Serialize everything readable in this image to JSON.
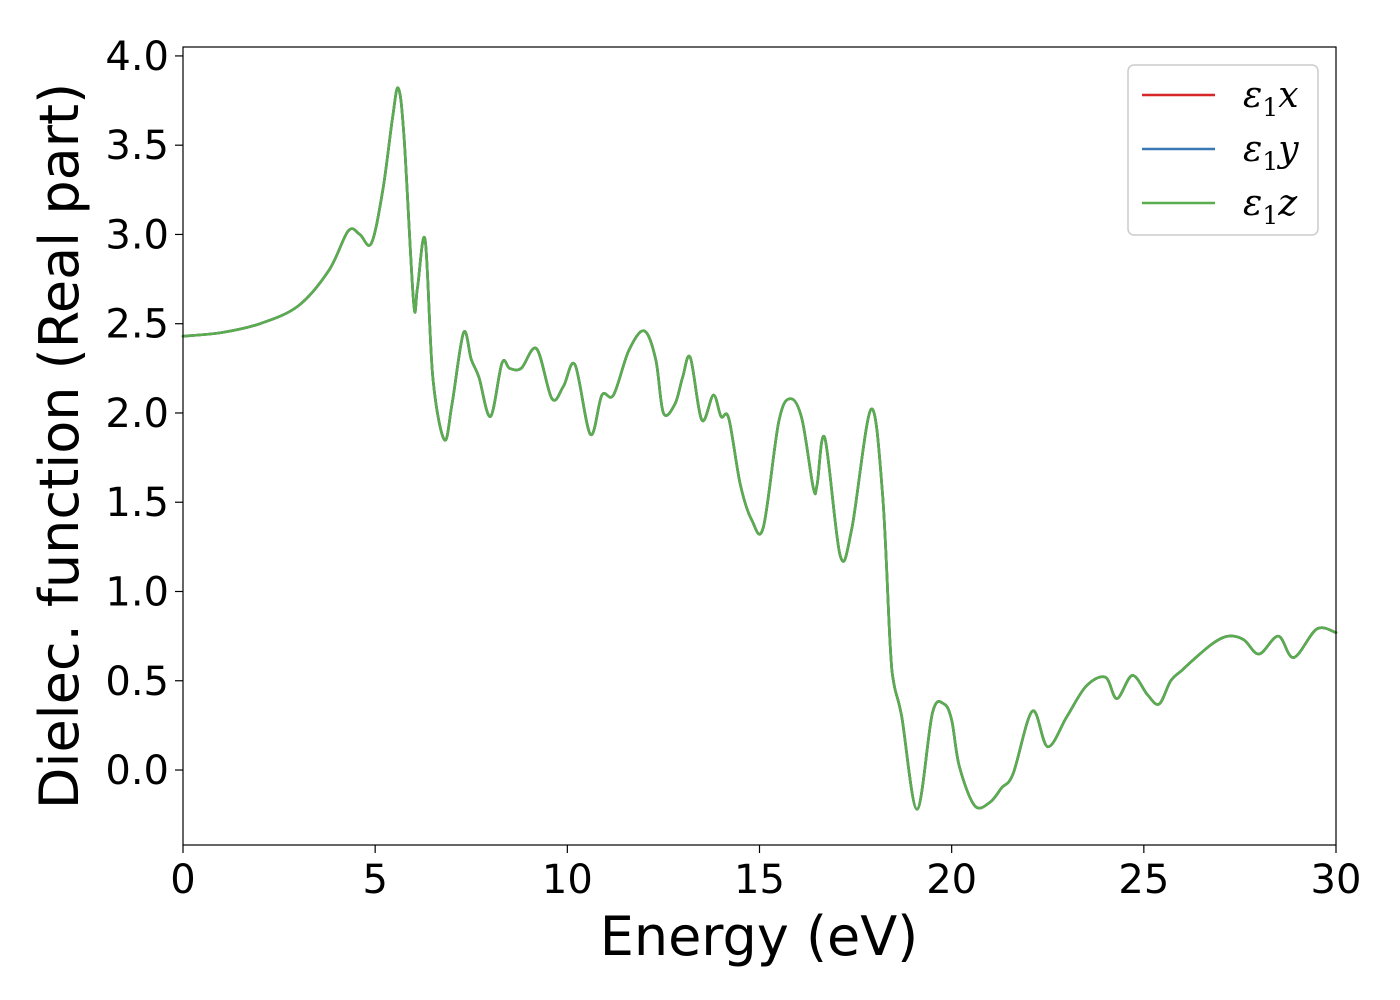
{
  "chart_data": {
    "type": "line",
    "title": "",
    "xlabel": "Energy (eV)",
    "ylabel": "Dielec. function (Real part)",
    "xlim": [
      0,
      30
    ],
    "ylim": [
      -0.42,
      4.05
    ],
    "xticks": [
      0,
      5,
      10,
      15,
      20,
      25,
      30
    ],
    "xtick_labels": [
      "0",
      "5",
      "10",
      "15",
      "20",
      "25",
      "30"
    ],
    "yticks": [
      0.0,
      0.5,
      1.0,
      1.5,
      2.0,
      2.5,
      3.0,
      3.5,
      4.0
    ],
    "ytick_labels": [
      "0.0",
      "0.5",
      "1.0",
      "1.5",
      "2.0",
      "2.5",
      "3.0",
      "3.5",
      "4.0"
    ],
    "grid": false,
    "legend_position": "top-right",
    "x": [
      0,
      1,
      2,
      3,
      3.8,
      4.3,
      4.6,
      4.9,
      5.2,
      5.45,
      5.6,
      5.75,
      6.0,
      6.1,
      6.3,
      6.5,
      6.8,
      7.0,
      7.3,
      7.5,
      7.7,
      8.0,
      8.3,
      8.5,
      8.8,
      9.2,
      9.6,
      9.9,
      10.2,
      10.6,
      10.9,
      11.2,
      11.6,
      12.0,
      12.3,
      12.5,
      12.8,
      13.0,
      13.2,
      13.5,
      13.8,
      14.0,
      14.2,
      14.5,
      14.8,
      15.1,
      15.5,
      15.8,
      16.1,
      16.4,
      16.5,
      16.7,
      17.1,
      17.4,
      17.9,
      18.2,
      18.4,
      18.5,
      18.7,
      19.1,
      19.5,
      19.8,
      20.0,
      20.2,
      20.6,
      21.0,
      21.3,
      21.6,
      22.1,
      22.5,
      23.0,
      23.5,
      24.0,
      24.3,
      24.7,
      25.1,
      25.4,
      25.7,
      26.0,
      26.3,
      26.8,
      27.2,
      27.6,
      28.0,
      28.5,
      28.9,
      29.5,
      30.0
    ],
    "series": [
      {
        "name": "ε1x",
        "color": "#d62728",
        "values": [
          2.43,
          2.45,
          2.5,
          2.6,
          2.8,
          3.02,
          3.0,
          2.95,
          3.25,
          3.65,
          3.82,
          3.55,
          2.62,
          2.7,
          2.97,
          2.2,
          1.85,
          2.05,
          2.45,
          2.3,
          2.2,
          1.98,
          2.28,
          2.25,
          2.25,
          2.36,
          2.08,
          2.15,
          2.27,
          1.88,
          2.1,
          2.1,
          2.35,
          2.46,
          2.3,
          2.0,
          2.05,
          2.2,
          2.31,
          1.96,
          2.1,
          1.98,
          1.97,
          1.6,
          1.4,
          1.36,
          1.95,
          2.08,
          1.97,
          1.58,
          1.6,
          1.86,
          1.2,
          1.35,
          2.02,
          1.55,
          0.7,
          0.48,
          0.3,
          -0.22,
          0.32,
          0.37,
          0.28,
          0.02,
          -0.2,
          -0.18,
          -0.1,
          -0.02,
          0.33,
          0.13,
          0.3,
          0.47,
          0.52,
          0.4,
          0.53,
          0.42,
          0.37,
          0.5,
          0.56,
          0.62,
          0.71,
          0.75,
          0.73,
          0.65,
          0.75,
          0.63,
          0.79,
          0.77
        ]
      },
      {
        "name": "ε1y",
        "color": "#3a78b5",
        "values": [
          2.43,
          2.45,
          2.5,
          2.6,
          2.8,
          3.02,
          3.0,
          2.95,
          3.25,
          3.65,
          3.82,
          3.55,
          2.62,
          2.7,
          2.97,
          2.2,
          1.85,
          2.05,
          2.45,
          2.3,
          2.2,
          1.98,
          2.28,
          2.25,
          2.25,
          2.36,
          2.08,
          2.15,
          2.27,
          1.88,
          2.1,
          2.1,
          2.35,
          2.46,
          2.3,
          2.0,
          2.05,
          2.2,
          2.31,
          1.96,
          2.1,
          1.98,
          1.97,
          1.6,
          1.4,
          1.36,
          1.95,
          2.08,
          1.97,
          1.58,
          1.6,
          1.86,
          1.2,
          1.35,
          2.02,
          1.55,
          0.7,
          0.48,
          0.3,
          -0.22,
          0.32,
          0.37,
          0.28,
          0.02,
          -0.2,
          -0.18,
          -0.1,
          -0.02,
          0.33,
          0.13,
          0.3,
          0.47,
          0.52,
          0.4,
          0.53,
          0.42,
          0.37,
          0.5,
          0.56,
          0.62,
          0.71,
          0.75,
          0.73,
          0.65,
          0.75,
          0.63,
          0.79,
          0.77
        ]
      },
      {
        "name": "ε1z",
        "color": "#5aad4e",
        "values": [
          2.43,
          2.45,
          2.5,
          2.6,
          2.8,
          3.02,
          3.0,
          2.95,
          3.25,
          3.65,
          3.82,
          3.55,
          2.62,
          2.7,
          2.97,
          2.2,
          1.85,
          2.05,
          2.45,
          2.3,
          2.2,
          1.98,
          2.28,
          2.25,
          2.25,
          2.36,
          2.08,
          2.15,
          2.27,
          1.88,
          2.1,
          2.1,
          2.35,
          2.46,
          2.3,
          2.0,
          2.05,
          2.2,
          2.31,
          1.96,
          2.1,
          1.98,
          1.97,
          1.6,
          1.4,
          1.36,
          1.95,
          2.08,
          1.97,
          1.58,
          1.6,
          1.86,
          1.2,
          1.35,
          2.02,
          1.55,
          0.7,
          0.48,
          0.3,
          -0.22,
          0.32,
          0.37,
          0.28,
          0.02,
          -0.2,
          -0.18,
          -0.1,
          -0.02,
          0.33,
          0.13,
          0.3,
          0.47,
          0.52,
          0.4,
          0.53,
          0.42,
          0.37,
          0.5,
          0.56,
          0.62,
          0.71,
          0.75,
          0.73,
          0.65,
          0.75,
          0.63,
          0.79,
          0.77
        ]
      }
    ],
    "legend": [
      {
        "symbol": "ε",
        "subscript": "1",
        "axis": "x"
      },
      {
        "symbol": "ε",
        "subscript": "1",
        "axis": "y"
      },
      {
        "symbol": "ε",
        "subscript": "1",
        "axis": "z"
      }
    ]
  }
}
